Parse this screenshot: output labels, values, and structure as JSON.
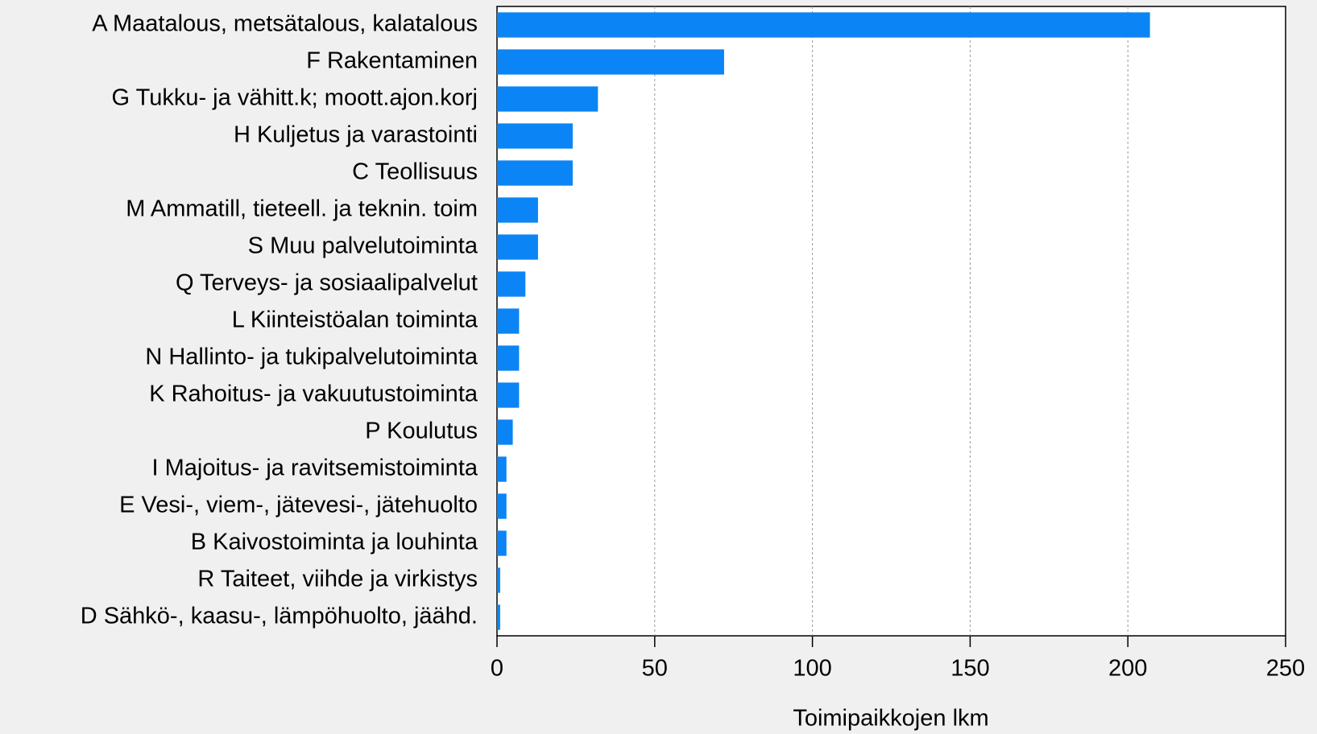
{
  "chart_data": {
    "type": "barh",
    "categories": [
      "A Maatalous, metsätalous, kalatalous",
      "F Rakentaminen",
      "G Tukku- ja vähitt.k; moott.ajon.korj",
      "H Kuljetus ja varastointi",
      "C Teollisuus",
      "M Ammatill, tieteell. ja teknin. toim",
      "S Muu palvelutoiminta",
      "Q Terveys- ja sosiaalipalvelut",
      "L Kiinteistöalan toiminta",
      "N Hallinto- ja tukipalvelutoiminta",
      "K Rahoitus- ja vakuutustoiminta",
      "P Koulutus",
      "I Majoitus- ja ravitsemistoiminta",
      "E Vesi-, viem-, jätevesi-, jätehuolto",
      "B Kaivostoiminta ja louhinta",
      "R Taiteet, viihde ja virkistys",
      "D Sähkö-, kaasu-, lämpöhuolto, jäähd."
    ],
    "values": [
      207,
      72,
      32,
      24,
      24,
      13,
      13,
      9,
      7,
      7,
      7,
      5,
      3,
      3,
      3,
      1,
      1
    ],
    "color": "#0b84f5",
    "xlabel": "Toimipaikkojen lkm",
    "xlim": [
      0,
      250
    ],
    "xticks": [
      0,
      50,
      100,
      150,
      200,
      250
    ],
    "grid": true
  }
}
